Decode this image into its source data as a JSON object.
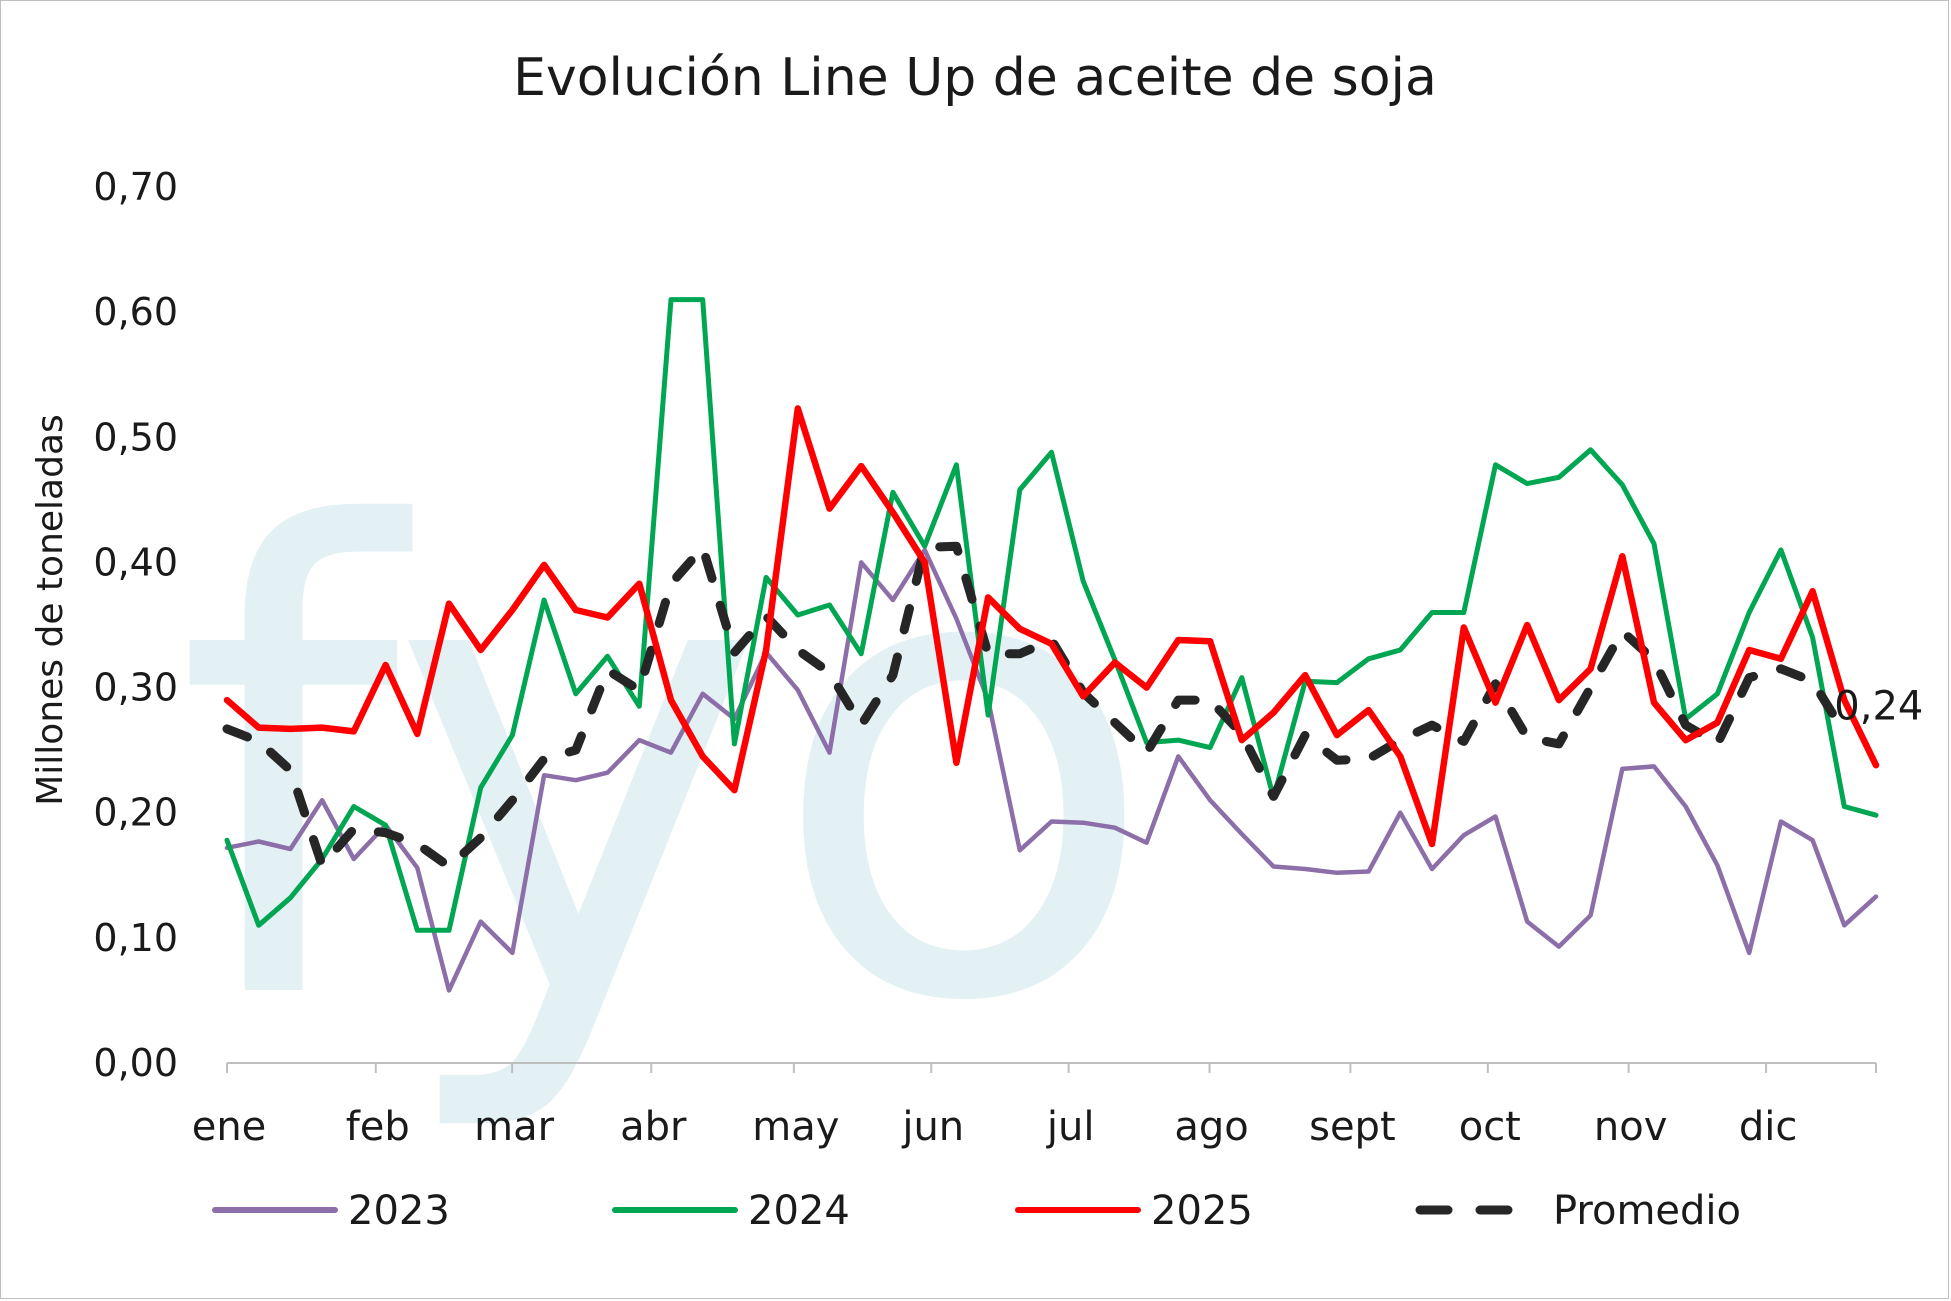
{
  "chart_data": {
    "type": "line",
    "title": "Evolución Line Up de aceite de soja",
    "ylabel": "Millones de toneladas",
    "xlabel": "",
    "ylim": [
      0,
      0.7
    ],
    "yticks": [
      "0,00",
      "0,10",
      "0,20",
      "0,30",
      "0,40",
      "0,50",
      "0,60",
      "0,70"
    ],
    "ytick_values": [
      0,
      0.1,
      0.2,
      0.3,
      0.4,
      0.5,
      0.6,
      0.7
    ],
    "months": [
      "ene",
      "feb",
      "mar",
      "abr",
      "may",
      "jun",
      "jul",
      "ago",
      "sept",
      "oct",
      "nov",
      "dic"
    ],
    "month_weeks": [
      0,
      4.33,
      8.3,
      12.35,
      16.5,
      20.5,
      24.5,
      28.6,
      32.7,
      36.7,
      40.8,
      44.8
    ],
    "weeks": 49,
    "watermark": "fyo",
    "end_label": "0,24",
    "legend_position": "bottom",
    "series": [
      {
        "name": "2023",
        "color": "#8c6fa8",
        "style": "solid",
        "values": [
          0.172,
          0.177,
          0.171,
          0.21,
          0.163,
          0.19,
          0.156,
          0.058,
          0.113,
          0.088,
          0.23,
          0.226,
          0.232,
          0.258,
          0.248,
          0.295,
          0.275,
          0.328,
          0.298,
          0.248,
          0.4,
          0.37,
          0.41,
          0.355,
          0.29,
          0.17,
          0.193,
          0.192,
          0.188,
          0.176,
          0.245,
          0.21,
          0.183,
          0.157,
          0.155,
          0.152,
          0.153,
          0.2,
          0.155,
          0.182,
          0.197,
          0.113,
          0.093,
          0.118,
          0.235,
          0.237,
          0.205,
          0.158,
          0.088,
          0.193,
          0.178,
          0.11,
          0.133
        ]
      },
      {
        "name": "2024",
        "color": "#00a651",
        "style": "solid",
        "values": [
          0.178,
          0.11,
          0.132,
          0.163,
          0.205,
          0.19,
          0.106,
          0.106,
          0.22,
          0.262,
          0.37,
          0.295,
          0.325,
          0.285,
          0.61,
          0.61,
          0.255,
          0.388,
          0.358,
          0.366,
          0.327,
          0.456,
          0.413,
          0.478,
          0.278,
          0.458,
          0.488,
          0.385,
          0.322,
          0.256,
          0.258,
          0.252,
          0.308,
          0.212,
          0.305,
          0.304,
          0.323,
          0.33,
          0.36,
          0.36,
          0.478,
          0.463,
          0.468,
          0.49,
          0.462,
          0.415,
          0.275,
          0.295,
          0.36,
          0.41,
          0.34,
          0.205,
          0.198
        ]
      },
      {
        "name": "2025",
        "color": "#ff0000",
        "style": "solid",
        "values": [
          0.29,
          0.268,
          0.267,
          0.268,
          0.265,
          0.318,
          0.263,
          0.367,
          0.33,
          0.362,
          0.398,
          0.362,
          0.356,
          0.383,
          0.29,
          0.245,
          0.218,
          0.33,
          0.523,
          0.443,
          0.477,
          0.44,
          0.4,
          0.24,
          0.372,
          0.347,
          0.335,
          0.293,
          0.32,
          0.3,
          0.338,
          0.337,
          0.258,
          0.28,
          0.31,
          0.262,
          0.282,
          0.245,
          0.175,
          0.348,
          0.288,
          0.35,
          0.29,
          0.315,
          0.405,
          0.288,
          0.258,
          0.272,
          0.33,
          0.323,
          0.377,
          0.29,
          0.238
        ]
      },
      {
        "name": "Promedio",
        "color": "#262626",
        "style": "dashed",
        "values": [
          0.267,
          0.257,
          0.234,
          0.158,
          0.187,
          0.184,
          0.175,
          0.157,
          0.18,
          0.21,
          0.243,
          0.25,
          0.314,
          0.298,
          0.383,
          0.412,
          0.328,
          0.357,
          0.33,
          0.312,
          0.27,
          0.31,
          0.412,
          0.413,
          0.327,
          0.327,
          0.338,
          0.296,
          0.272,
          0.248,
          0.29,
          0.29,
          0.263,
          0.213,
          0.262,
          0.242,
          0.243,
          0.258,
          0.27,
          0.257,
          0.303,
          0.26,
          0.255,
          0.3,
          0.345,
          0.322,
          0.27,
          0.255,
          0.308,
          0.315,
          0.305,
          0.264
        ]
      }
    ]
  }
}
